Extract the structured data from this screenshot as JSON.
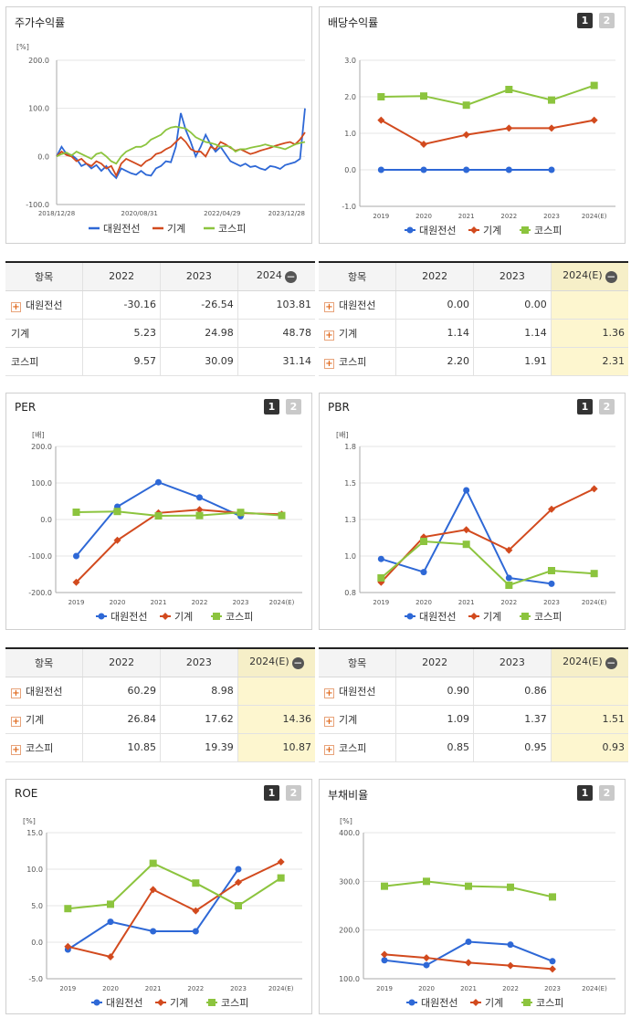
{
  "colors": {
    "series1": "#2e68d6",
    "series2": "#d24a1e",
    "series3": "#8cc43e",
    "highlight": "#fdf6cf"
  },
  "icons": {
    "expand": "plus-icon",
    "collapse": "minus-icon"
  },
  "series_names": [
    "대원전선",
    "기계",
    "코스피"
  ],
  "panels": {
    "stock_return": {
      "title": "주가수익률"
    },
    "dividend": {
      "title": "배당수익률",
      "btn1": "1",
      "btn2": "2"
    },
    "per": {
      "title": "PER",
      "btn1": "1",
      "btn2": "2"
    },
    "pbr": {
      "title": "PBR",
      "btn1": "1",
      "btn2": "2"
    },
    "roe": {
      "title": "ROE",
      "btn1": "1",
      "btn2": "2"
    },
    "debt": {
      "title": "부채비율",
      "btn1": "1",
      "btn2": "2"
    }
  },
  "tables": {
    "stock_return": {
      "headers": [
        "항목",
        "2022",
        "2023",
        "2024"
      ],
      "rows": [
        {
          "name": "대원전선",
          "values": [
            "-30.16",
            "-26.54",
            "103.81"
          ]
        },
        {
          "name": "기계",
          "values": [
            "5.23",
            "24.98",
            "48.78"
          ]
        },
        {
          "name": "코스피",
          "values": [
            "9.57",
            "30.09",
            "31.14"
          ]
        }
      ]
    },
    "dividend": {
      "headers": [
        "항목",
        "2022",
        "2023",
        "2024(E)"
      ],
      "rows": [
        {
          "name": "대원전선",
          "values": [
            "0.00",
            "0.00",
            ""
          ]
        },
        {
          "name": "기계",
          "values": [
            "1.14",
            "1.14",
            "1.36"
          ]
        },
        {
          "name": "코스피",
          "values": [
            "2.20",
            "1.91",
            "2.31"
          ]
        }
      ]
    },
    "per": {
      "headers": [
        "항목",
        "2022",
        "2023",
        "2024(E)"
      ],
      "rows": [
        {
          "name": "대원전선",
          "values": [
            "60.29",
            "8.98",
            ""
          ]
        },
        {
          "name": "기계",
          "values": [
            "26.84",
            "17.62",
            "14.36"
          ]
        },
        {
          "name": "코스피",
          "values": [
            "10.85",
            "19.39",
            "10.87"
          ]
        }
      ]
    },
    "pbr": {
      "headers": [
        "항목",
        "2022",
        "2023",
        "2024(E)"
      ],
      "rows": [
        {
          "name": "대원전선",
          "values": [
            "0.90",
            "0.86",
            ""
          ]
        },
        {
          "name": "기계",
          "values": [
            "1.09",
            "1.37",
            "1.51"
          ]
        },
        {
          "name": "코스피",
          "values": [
            "0.85",
            "0.95",
            "0.93"
          ]
        }
      ]
    }
  },
  "chart_data": [
    {
      "id": "stock_return",
      "type": "line",
      "unit": "[%]",
      "ylim": [
        -100,
        200
      ],
      "yticks": [
        "200.0",
        "100.0",
        "0.0",
        "-100.0"
      ],
      "xticks": [
        "2018/12/28",
        "2020/08/31",
        "2022/04/29",
        "2023/12/28"
      ],
      "series": [
        {
          "name": "대원전선",
          "values": [
            0,
            20,
            5,
            3,
            -5,
            -20,
            -15,
            -25,
            -18,
            -30,
            -20,
            -35,
            -45,
            -25,
            -30,
            -35,
            -38,
            -30,
            -38,
            -40,
            -25,
            -20,
            -10,
            -12,
            20,
            90,
            55,
            30,
            0,
            20,
            45,
            25,
            10,
            20,
            5,
            -10,
            -15,
            -20,
            -15,
            -22,
            -20,
            -25,
            -28,
            -20,
            -22,
            -26,
            -18,
            -15,
            -12,
            -5,
            100
          ]
        },
        {
          "name": "기계",
          "values": [
            0,
            10,
            3,
            0,
            -10,
            -5,
            -15,
            -20,
            -10,
            -15,
            -25,
            -20,
            -40,
            -15,
            -5,
            -10,
            -15,
            -20,
            -10,
            -5,
            5,
            8,
            15,
            20,
            30,
            40,
            30,
            15,
            10,
            10,
            0,
            20,
            15,
            30,
            25,
            18,
            12,
            15,
            10,
            5,
            8,
            12,
            15,
            18,
            22,
            25,
            28,
            30,
            25,
            35,
            50
          ]
        },
        {
          "name": "코스피",
          "values": [
            0,
            5,
            8,
            2,
            10,
            5,
            0,
            -5,
            5,
            8,
            0,
            -10,
            -15,
            0,
            10,
            15,
            20,
            20,
            25,
            35,
            40,
            45,
            55,
            60,
            62,
            60,
            58,
            50,
            40,
            35,
            30,
            28,
            25,
            20,
            22,
            20,
            10,
            15,
            15,
            18,
            20,
            22,
            25,
            22,
            20,
            18,
            15,
            20,
            25,
            28,
            30
          ]
        }
      ]
    },
    {
      "id": "dividend",
      "type": "line",
      "ylim": [
        -1,
        3
      ],
      "yticks": [
        "3.0",
        "2.0",
        "1.0",
        "0.0",
        "-1.0"
      ],
      "categories": [
        "2019",
        "2020",
        "2021",
        "2022",
        "2023",
        "2024(E)"
      ],
      "series": [
        {
          "name": "대원전선",
          "values": [
            0,
            0,
            0,
            0,
            0,
            null
          ]
        },
        {
          "name": "기계",
          "values": [
            1.36,
            0.7,
            0.96,
            1.14,
            1.14,
            1.36
          ]
        },
        {
          "name": "코스피",
          "values": [
            2.0,
            2.02,
            1.77,
            2.2,
            1.91,
            2.31
          ]
        }
      ]
    },
    {
      "id": "per",
      "type": "line",
      "unit": "[배]",
      "ylim": [
        -200,
        200
      ],
      "yticks": [
        "200.0",
        "100.0",
        "0.0",
        "-100.0",
        "-200.0"
      ],
      "categories": [
        "2019",
        "2020",
        "2021",
        "2022",
        "2023",
        "2024(E)"
      ],
      "series": [
        {
          "name": "대원전선",
          "values": [
            -100,
            35,
            102,
            60.29,
            8.98,
            null
          ]
        },
        {
          "name": "기계",
          "values": [
            -172,
            -57,
            18,
            26.84,
            17.62,
            14.36
          ]
        },
        {
          "name": "코스피",
          "values": [
            20,
            22,
            10,
            10.85,
            19.39,
            10.87
          ]
        }
      ]
    },
    {
      "id": "pbr",
      "type": "line",
      "unit": "[배]",
      "ylim": [
        0.8,
        1.8
      ],
      "yticks": [
        "1.8",
        "1.5",
        "1.3",
        "1.0",
        "0.8"
      ],
      "categories": [
        "2019",
        "2020",
        "2021",
        "2022",
        "2023",
        "2024(E)"
      ],
      "series": [
        {
          "name": "대원전선",
          "values": [
            1.03,
            0.94,
            1.5,
            0.9,
            0.86,
            null
          ]
        },
        {
          "name": "기계",
          "values": [
            0.87,
            1.18,
            1.23,
            1.09,
            1.37,
            1.51
          ]
        },
        {
          "name": "코스피",
          "values": [
            0.9,
            1.15,
            1.13,
            0.85,
            0.95,
            0.93
          ]
        }
      ]
    },
    {
      "id": "roe",
      "type": "line",
      "unit": "[%]",
      "ylim": [
        -5,
        15
      ],
      "yticks": [
        "15.0",
        "10.0",
        "5.0",
        "0.0",
        "-5.0"
      ],
      "categories": [
        "2019",
        "2020",
        "2021",
        "2022",
        "2023",
        "2024(E)"
      ],
      "series": [
        {
          "name": "대원전선",
          "values": [
            -1,
            2.8,
            1.5,
            1.5,
            10,
            null
          ]
        },
        {
          "name": "기계",
          "values": [
            -0.6,
            -2,
            7.2,
            4.3,
            8.2,
            11
          ]
        },
        {
          "name": "코스피",
          "values": [
            4.6,
            5.2,
            10.8,
            8.1,
            5,
            8.8
          ]
        }
      ]
    },
    {
      "id": "debt",
      "type": "line",
      "unit": "[%]",
      "ylim": [
        100,
        400
      ],
      "yticks": [
        "400.0",
        "300.0",
        "200.0",
        "100.0"
      ],
      "categories": [
        "2019",
        "2020",
        "2021",
        "2022",
        "2023",
        "2024(E)"
      ],
      "series": [
        {
          "name": "대원전선",
          "values": [
            138,
            128,
            176,
            170,
            136,
            null
          ]
        },
        {
          "name": "기계",
          "values": [
            150,
            143,
            133,
            127,
            120,
            null
          ]
        },
        {
          "name": "코스피",
          "values": [
            290,
            300,
            290,
            288,
            268,
            null
          ]
        }
      ]
    }
  ]
}
